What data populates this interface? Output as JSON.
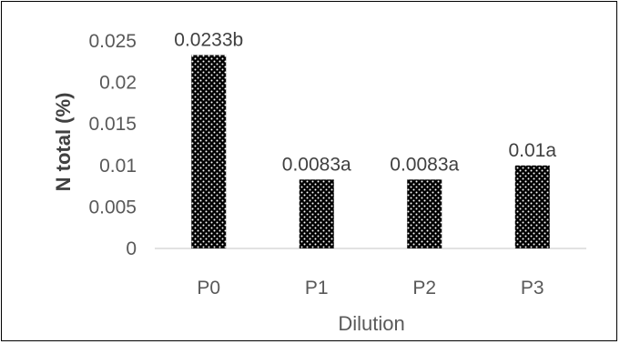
{
  "chart_data": {
    "type": "bar",
    "categories": [
      "P0",
      "P1",
      "P2",
      "P3"
    ],
    "values": [
      0.0233,
      0.0083,
      0.0083,
      0.01
    ],
    "data_labels": [
      "0.0233b",
      "0.0083a",
      "0.0083a",
      "0.01a"
    ],
    "xlabel": "Dilution",
    "ylabel": "N total (%)",
    "ylim": [
      0,
      0.025
    ],
    "yticks": [
      "0",
      "0.005",
      "0.01",
      "0.015",
      "0.02",
      "0.025"
    ],
    "grid": false,
    "bar_pattern": "black with white dots"
  }
}
